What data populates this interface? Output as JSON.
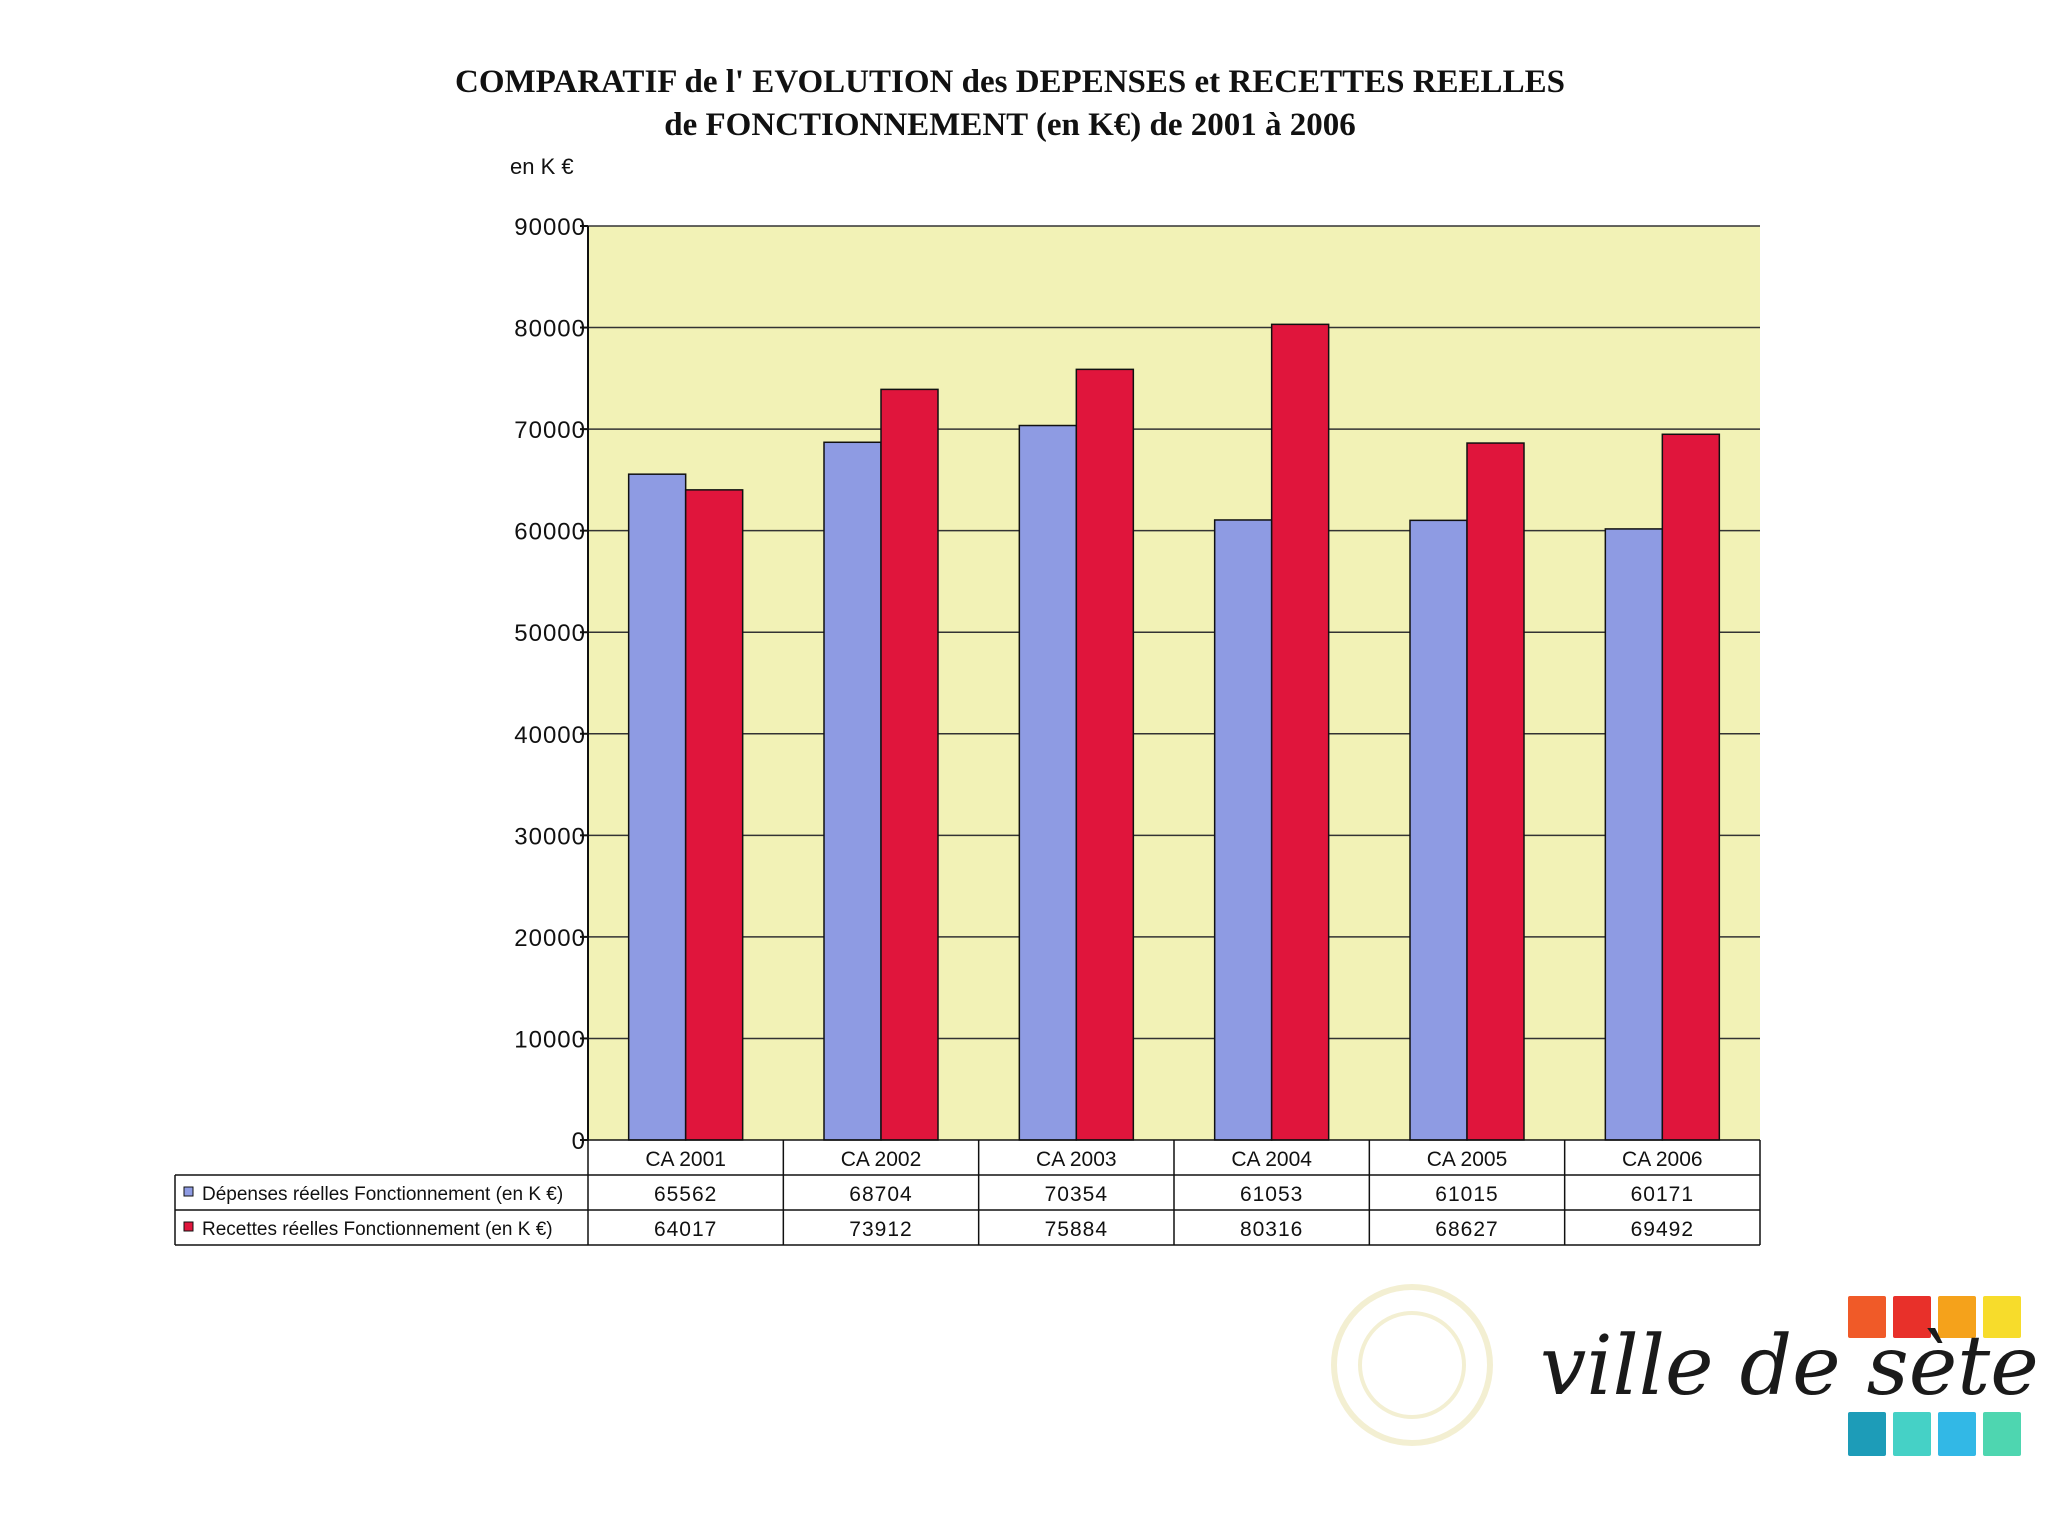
{
  "chart_data": {
    "type": "bar",
    "title_line1": "COMPARATIF de l' EVOLUTION des DEPENSES et RECETTES REELLES",
    "title_line2": "de FONCTIONNEMENT (en K€) de 2001 à 2006",
    "ylabel": "en K €",
    "ylim": [
      0,
      90000
    ],
    "yticks": [
      0,
      10000,
      20000,
      30000,
      40000,
      50000,
      60000,
      70000,
      80000,
      90000
    ],
    "categories": [
      "CA 2001",
      "CA 2002",
      "CA 2003",
      "CA 2004",
      "CA 2005",
      "CA 2006"
    ],
    "series": [
      {
        "name": "Dépenses réelles Fonctionnement (en K €)",
        "color": "#8e9be3",
        "values": [
          65562,
          68704,
          70354,
          61053,
          61015,
          60171
        ]
      },
      {
        "name": "Recettes réelles Fonctionnement (en K €)",
        "color": "#e0153c",
        "values": [
          64017,
          73912,
          75884,
          80316,
          68627,
          69492
        ]
      }
    ],
    "grid": true,
    "legend": "data-table-below",
    "plot_background": "#f2f2b6"
  },
  "logo": {
    "text": "ville de sète",
    "colors": [
      "#f05a28",
      "#e8302a",
      "#f5a21b",
      "#f7dc2b",
      "#1d9cb8",
      "#45d1c6",
      "#32b8e6",
      "#4ed6b0"
    ]
  }
}
